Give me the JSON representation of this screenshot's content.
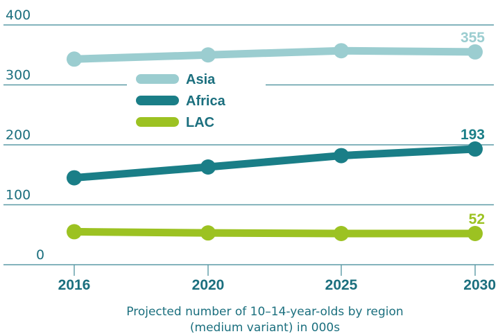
{
  "chart_data": {
    "type": "line",
    "x": [
      "2016",
      "2020",
      "2025",
      "2030"
    ],
    "series": [
      {
        "name": "Asia",
        "values": [
          343,
          350,
          357,
          355
        ],
        "color": "#9bcdd0",
        "end_label": "355"
      },
      {
        "name": "Africa",
        "values": [
          145,
          163,
          182,
          193
        ],
        "color": "#1a7e87",
        "end_label": "193"
      },
      {
        "name": "LAC",
        "values": [
          55,
          53,
          52,
          52
        ],
        "color": "#9cc222",
        "end_label": "52"
      }
    ],
    "ylim": [
      0,
      400
    ],
    "yticks": [
      "0",
      "100",
      "200",
      "300",
      "400"
    ],
    "grid": true,
    "legend": "center-left",
    "caption": [
      "Projected number of 10–14-year-olds by region",
      "(medium variant) in 000s"
    ],
    "axis_color": "#1b6f7e",
    "grid_color": "#5a9aa5"
  }
}
